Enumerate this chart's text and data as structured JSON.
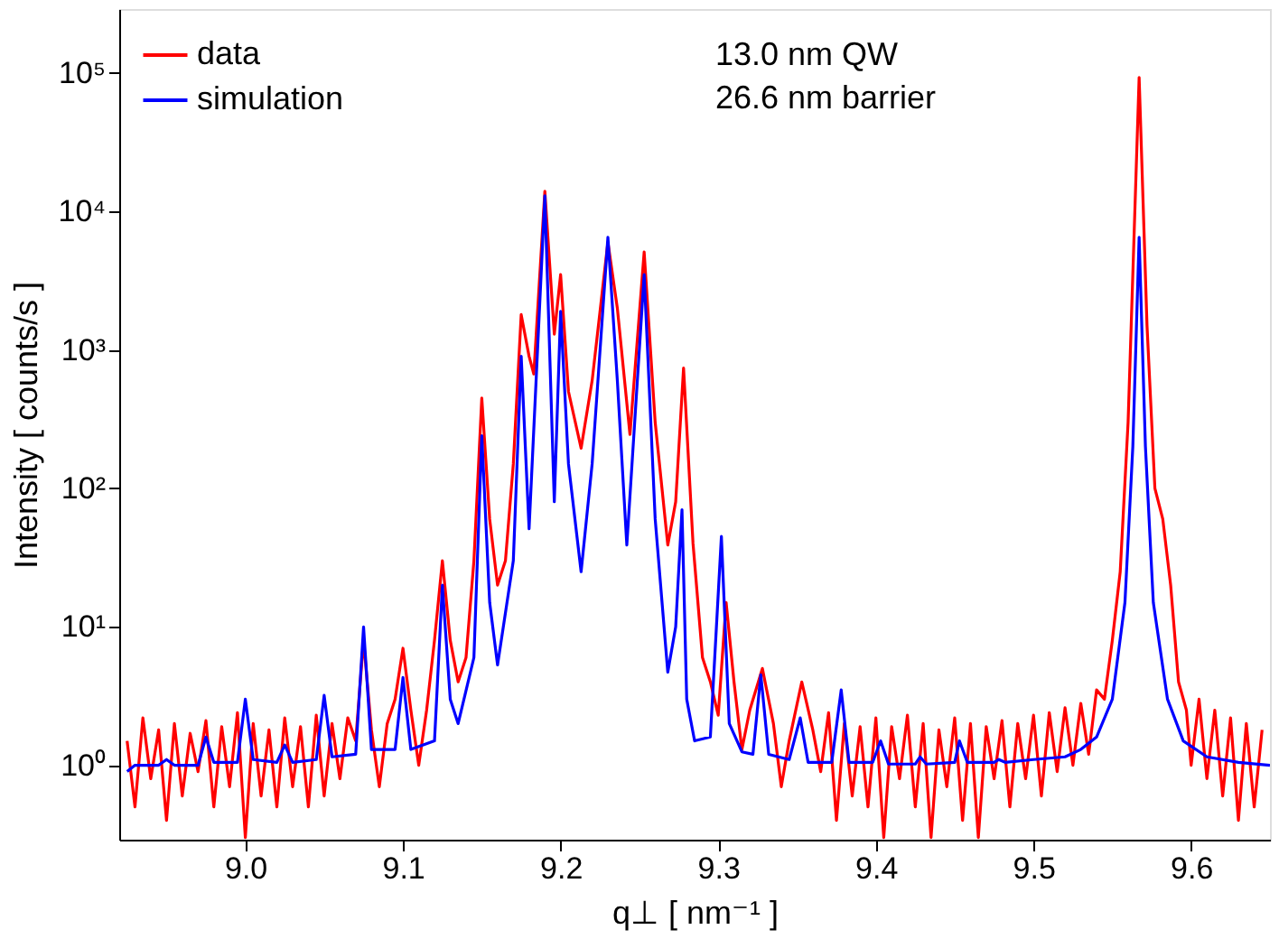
{
  "chart_data": {
    "type": "line",
    "xlabel": "q⊥ [ nm⁻¹ ]",
    "ylabel": "Intensity [ counts/s ]",
    "log": "y",
    "xlim": [
      8.92,
      9.65
    ],
    "ylim": [
      0.29,
      290000
    ],
    "xticks": [
      {
        "value": 9.0,
        "label": "9.0"
      },
      9.1,
      9.2,
      9.3,
      9.4,
      9.5,
      9.6
    ],
    "yticks": [
      {
        "value": 1,
        "label": "10⁰"
      },
      {
        "value": 10,
        "label": "10¹"
      },
      {
        "value": 100,
        "label": "10²"
      },
      {
        "value": 1000,
        "label": "10³"
      },
      {
        "value": 10000,
        "label": "10⁴"
      },
      {
        "value": 100000,
        "label": "10⁵"
      }
    ],
    "grid": false,
    "legend": "top left",
    "line_style": "solid",
    "marker": "none",
    "annotations": [
      "13.0 nm QW",
      "26.6 nm barrier"
    ],
    "series": [
      {
        "name": "data",
        "color": "#ff0000",
        "x": [
          8.925,
          8.93,
          8.935,
          8.94,
          8.945,
          8.95,
          8.955,
          8.96,
          8.965,
          8.97,
          8.975,
          8.98,
          8.985,
          8.99,
          8.995,
          9.0,
          9.005,
          9.01,
          9.015,
          9.02,
          9.025,
          9.03,
          9.035,
          9.04,
          9.045,
          9.05,
          9.055,
          9.06,
          9.065,
          9.07,
          9.075,
          9.08,
          9.085,
          9.09,
          9.095,
          9.1,
          9.105,
          9.11,
          9.115,
          9.12,
          9.125,
          9.13,
          9.135,
          9.14,
          9.145,
          9.15,
          9.155,
          9.16,
          9.165,
          9.17,
          9.175,
          9.18,
          9.183,
          9.19,
          9.196,
          9.2,
          9.205,
          9.213,
          9.22,
          9.23,
          9.236,
          9.244,
          9.253,
          9.26,
          9.268,
          9.273,
          9.278,
          9.284,
          9.29,
          9.295,
          9.3,
          9.305,
          9.31,
          9.315,
          9.32,
          9.328,
          9.335,
          9.34,
          9.345,
          9.353,
          9.36,
          9.365,
          9.37,
          9.375,
          9.38,
          9.385,
          9.39,
          9.395,
          9.4,
          9.405,
          9.41,
          9.415,
          9.42,
          9.425,
          9.43,
          9.435,
          9.44,
          9.445,
          9.45,
          9.455,
          9.46,
          9.465,
          9.47,
          9.475,
          9.48,
          9.485,
          9.49,
          9.495,
          9.5,
          9.505,
          9.51,
          9.515,
          9.52,
          9.525,
          9.53,
          9.535,
          9.54,
          9.545,
          9.55,
          9.555,
          9.56,
          9.567,
          9.572,
          9.577,
          9.582,
          9.587,
          9.592,
          9.597,
          9.6,
          9.605,
          9.61,
          9.615,
          9.62,
          9.625,
          9.63,
          9.635,
          9.64,
          9.645
        ],
        "values": [
          1.5,
          0.5,
          2.2,
          0.8,
          1.8,
          0.4,
          2.0,
          0.6,
          1.7,
          0.9,
          2.1,
          0.5,
          1.9,
          0.7,
          2.4,
          0.3,
          2.0,
          0.6,
          1.8,
          0.5,
          2.2,
          0.7,
          1.9,
          0.5,
          2.3,
          0.6,
          2.0,
          0.8,
          2.2,
          1.5,
          8,
          1.8,
          0.7,
          2.0,
          3.0,
          7,
          2.5,
          1.0,
          2.5,
          8,
          30,
          8,
          4,
          6,
          30,
          450,
          60,
          20,
          30,
          150,
          1800,
          900,
          670,
          14000,
          1300,
          3500,
          500,
          195,
          600,
          6000,
          2000,
          245,
          5100,
          300,
          39,
          80,
          740,
          40,
          6,
          4,
          2.3,
          15,
          4,
          1.3,
          2.5,
          5,
          2,
          0.7,
          1.5,
          4,
          1.8,
          0.9,
          2.4,
          0.4,
          2.0,
          0.6,
          1.9,
          0.5,
          2.2,
          0.3,
          1.9,
          0.8,
          2.3,
          0.5,
          2.0,
          0.3,
          1.8,
          0.7,
          2.2,
          0.4,
          2.0,
          0.3,
          1.9,
          0.8,
          2.1,
          0.5,
          2.0,
          0.8,
          2.3,
          0.6,
          2.4,
          0.9,
          2.6,
          1.0,
          2.8,
          1.2,
          3.5,
          3,
          8,
          25,
          300,
          93000,
          1500,
          100,
          60,
          20,
          4,
          2.5,
          1.0,
          3.0,
          0.8,
          2.5,
          0.6,
          2.2,
          0.4,
          2.0,
          0.5,
          1.8
        ]
      },
      {
        "name": "simulation",
        "color": "#0000ff",
        "x": [
          8.925,
          8.93,
          8.945,
          8.95,
          8.955,
          8.97,
          8.975,
          8.98,
          8.995,
          9.0,
          9.005,
          9.02,
          9.025,
          9.03,
          9.045,
          9.05,
          9.055,
          9.07,
          9.075,
          9.08,
          9.095,
          9.1,
          9.105,
          9.12,
          9.125,
          9.13,
          9.135,
          9.145,
          9.15,
          9.155,
          9.16,
          9.17,
          9.175,
          9.18,
          9.19,
          9.196,
          9.2,
          9.205,
          9.213,
          9.22,
          9.23,
          9.236,
          9.242,
          9.253,
          9.26,
          9.268,
          9.273,
          9.277,
          9.28,
          9.285,
          9.295,
          9.302,
          9.307,
          9.315,
          9.322,
          9.327,
          9.332,
          9.345,
          9.352,
          9.357,
          9.372,
          9.378,
          9.383,
          9.398,
          9.403,
          9.408,
          9.425,
          9.428,
          9.432,
          9.45,
          9.453,
          9.458,
          9.475,
          9.478,
          9.482,
          9.5,
          9.52,
          9.53,
          9.54,
          9.55,
          9.558,
          9.563,
          9.567,
          9.571,
          9.576,
          9.585,
          9.595,
          9.61,
          9.63,
          9.65
        ],
        "values": [
          0.9,
          1.0,
          1.0,
          1.1,
          1.0,
          1.0,
          1.6,
          1.05,
          1.05,
          3,
          1.1,
          1.05,
          1.4,
          1.05,
          1.1,
          3.2,
          1.15,
          1.2,
          10,
          1.3,
          1.3,
          4.3,
          1.3,
          1.5,
          20,
          3,
          2,
          6,
          240,
          15,
          5.3,
          30,
          900,
          51,
          13000,
          80,
          1900,
          150,
          25,
          150,
          6500,
          600,
          39,
          3500,
          60,
          4.7,
          10,
          70,
          3,
          1.5,
          1.6,
          45,
          2,
          1.25,
          1.2,
          4.5,
          1.2,
          1.1,
          2.2,
          1.05,
          1.05,
          3.5,
          1.05,
          1.05,
          1.5,
          1.02,
          1.02,
          1.15,
          1.02,
          1.05,
          1.5,
          1.05,
          1.05,
          1.1,
          1.05,
          1.1,
          1.15,
          1.3,
          1.6,
          3,
          15,
          200,
          6500,
          200,
          15,
          3,
          1.5,
          1.15,
          1.05,
          1.0
        ]
      }
    ]
  }
}
